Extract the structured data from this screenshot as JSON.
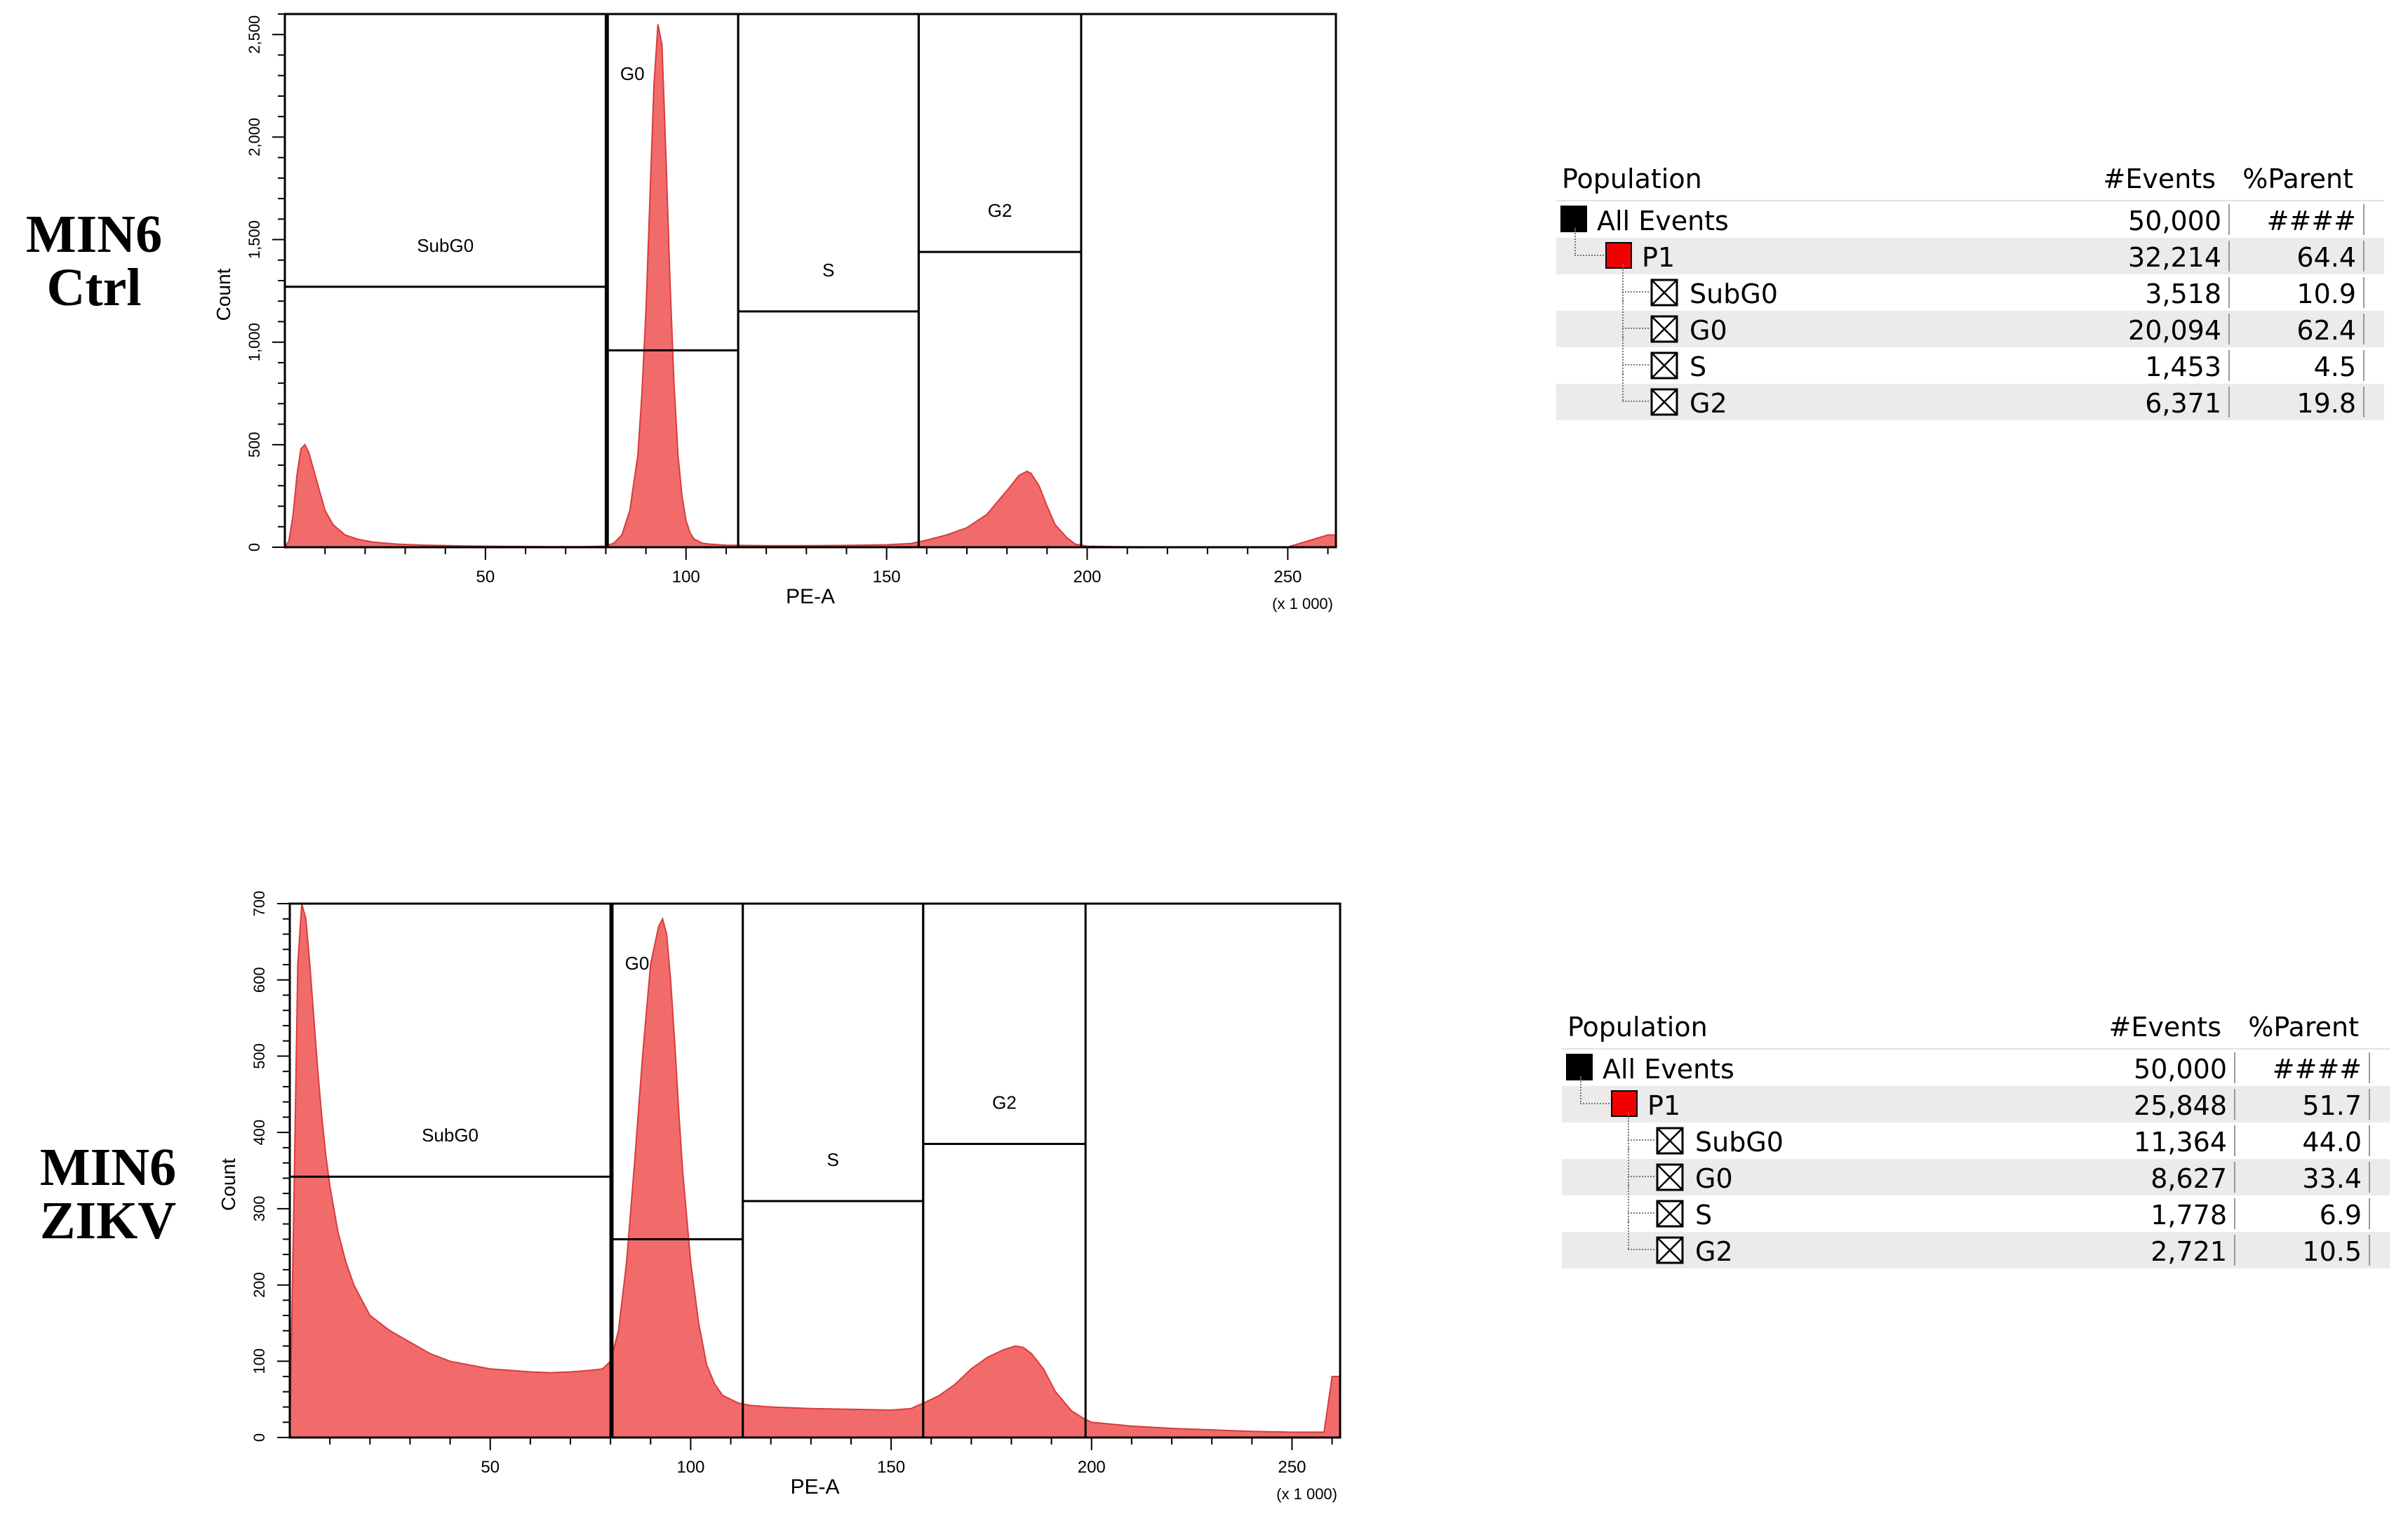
{
  "panels": [
    {
      "label_line1": "MIN6",
      "label_line2": "Ctrl",
      "plot": {
        "y_axis_label": "Count",
        "x_axis_label": "PE-A",
        "x_scale_note": "(x 1 000)",
        "y_ticks": [
          "0",
          "500",
          "1,000",
          "1,500",
          "2,000",
          "2,500"
        ],
        "x_ticks": [
          "50",
          "100",
          "150",
          "200",
          "250"
        ],
        "gate_labels": [
          "SubG0",
          "G0",
          "S",
          "G2"
        ]
      },
      "table": {
        "headers": {
          "population": "Population",
          "events": "#Events",
          "parent": "%Parent"
        },
        "rows": [
          {
            "name": "All Events",
            "events": "50,000",
            "parent": "####"
          },
          {
            "name": "P1",
            "events": "32,214",
            "parent": "64.4"
          },
          {
            "name": "SubG0",
            "events": "3,518",
            "parent": "10.9"
          },
          {
            "name": "G0",
            "events": "20,094",
            "parent": "62.4"
          },
          {
            "name": "S",
            "events": "1,453",
            "parent": "4.5"
          },
          {
            "name": "G2",
            "events": "6,371",
            "parent": "19.8"
          }
        ]
      }
    },
    {
      "label_line1": "MIN6",
      "label_line2": "ZIKV",
      "plot": {
        "y_axis_label": "Count",
        "x_axis_label": "PE-A",
        "x_scale_note": "(x 1 000)",
        "y_ticks": [
          "0",
          "100",
          "200",
          "300",
          "400",
          "500",
          "600",
          "700"
        ],
        "x_ticks": [
          "50",
          "100",
          "150",
          "200",
          "250"
        ],
        "gate_labels": [
          "SubG0",
          "G0",
          "S",
          "G2"
        ]
      },
      "table": {
        "headers": {
          "population": "Population",
          "events": "#Events",
          "parent": "%Parent"
        },
        "rows": [
          {
            "name": "All Events",
            "events": "50,000",
            "parent": "####"
          },
          {
            "name": "P1",
            "events": "25,848",
            "parent": "51.7"
          },
          {
            "name": "SubG0",
            "events": "11,364",
            "parent": "44.0"
          },
          {
            "name": "G0",
            "events": "8,627",
            "parent": "33.4"
          },
          {
            "name": "S",
            "events": "1,778",
            "parent": "6.9"
          },
          {
            "name": "G2",
            "events": "2,721",
            "parent": "10.5"
          }
        ]
      }
    }
  ],
  "chart_data": [
    {
      "type": "area",
      "title": "",
      "xlabel": "PE-A",
      "ylabel": "Count",
      "xlim": [
        0,
        262
      ],
      "ylim": [
        0,
        2600
      ],
      "x_ticks": [
        50,
        100,
        150,
        200,
        250
      ],
      "y_ticks": [
        0,
        500,
        1000,
        1500,
        2000,
        2500
      ],
      "fill_color": "#f26b6b",
      "gate_color": "#000000",
      "series": [
        {
          "x": [
            0,
            1,
            2,
            3,
            4,
            5,
            6,
            8,
            10,
            12,
            15,
            18,
            22,
            28,
            35,
            45,
            55,
            65,
            75,
            80,
            82,
            84,
            86,
            88,
            89,
            90,
            91,
            92,
            93,
            94,
            95,
            96,
            97,
            98,
            99,
            100,
            101,
            102,
            104,
            106,
            110,
            120,
            130,
            140,
            150,
            156,
            160,
            165,
            170,
            175,
            178,
            181,
            183,
            185,
            186,
            188,
            190,
            192,
            195,
            197,
            200,
            210,
            230,
            250,
            260,
            262
          ],
          "y": [
            0,
            30,
            150,
            350,
            480,
            500,
            460,
            320,
            180,
            110,
            60,
            40,
            25,
            15,
            10,
            6,
            4,
            3,
            3,
            5,
            20,
            60,
            180,
            450,
            750,
            1150,
            1700,
            2250,
            2550,
            2450,
            1900,
            1300,
            800,
            450,
            250,
            130,
            70,
            40,
            20,
            15,
            10,
            8,
            8,
            9,
            12,
            18,
            35,
            60,
            95,
            160,
            230,
            300,
            350,
            370,
            360,
            300,
            200,
            110,
            45,
            15,
            5,
            2,
            1,
            1,
            60,
            60
          ]
        }
      ],
      "gates": [
        {
          "name": "SubG0",
          "x_min": 0,
          "x_max": 80,
          "y_marker": 1270
        },
        {
          "name": "G0",
          "x_min": 80.5,
          "x_max": 113,
          "y_marker": 960
        },
        {
          "name": "S",
          "x_min": 113,
          "x_max": 158,
          "y_marker": 1150
        },
        {
          "name": "G2",
          "x_min": 158,
          "x_max": 198.5,
          "y_marker": 1440
        }
      ]
    },
    {
      "type": "area",
      "title": "",
      "xlabel": "PE-A",
      "ylabel": "Count",
      "xlim": [
        0,
        262
      ],
      "ylim": [
        0,
        700
      ],
      "x_ticks": [
        50,
        100,
        150,
        200,
        250
      ],
      "y_ticks": [
        0,
        100,
        200,
        300,
        400,
        500,
        600,
        700
      ],
      "fill_color": "#f26b6b",
      "gate_color": "#000000",
      "series": [
        {
          "x": [
            0,
            1,
            2,
            3,
            4,
            5,
            6,
            7,
            8,
            9,
            10,
            12,
            14,
            16,
            18,
            20,
            25,
            30,
            35,
            40,
            45,
            50,
            55,
            60,
            65,
            70,
            75,
            78,
            80,
            82,
            84,
            86,
            88,
            90,
            92,
            93,
            94,
            95,
            96,
            97,
            98,
            100,
            102,
            104,
            106,
            108,
            110,
            112,
            115,
            120,
            130,
            140,
            150,
            155,
            158,
            162,
            166,
            170,
            174,
            178,
            181,
            183,
            185,
            188,
            191,
            195,
            198,
            200,
            210,
            220,
            230,
            240,
            250,
            258,
            260,
            262
          ],
          "y": [
            0,
            300,
            620,
            700,
            680,
            620,
            550,
            480,
            420,
            370,
            330,
            270,
            230,
            200,
            180,
            160,
            140,
            125,
            110,
            100,
            95,
            90,
            88,
            86,
            85,
            86,
            88,
            90,
            100,
            140,
            230,
            360,
            500,
            620,
            670,
            680,
            660,
            600,
            520,
            430,
            350,
            230,
            150,
            95,
            70,
            55,
            50,
            45,
            42,
            40,
            38,
            37,
            36,
            38,
            45,
            55,
            70,
            90,
            105,
            115,
            120,
            118,
            110,
            90,
            60,
            35,
            25,
            20,
            15,
            12,
            10,
            8,
            7,
            7,
            80,
            80
          ]
        }
      ],
      "gates": [
        {
          "name": "SubG0",
          "x_min": 0,
          "x_max": 80,
          "y_marker": 342
        },
        {
          "name": "G0",
          "x_min": 80.5,
          "x_max": 113,
          "y_marker": 260
        },
        {
          "name": "S",
          "x_min": 113,
          "x_max": 158,
          "y_marker": 310
        },
        {
          "name": "G2",
          "x_min": 158,
          "x_max": 198.5,
          "y_marker": 385
        }
      ]
    }
  ]
}
